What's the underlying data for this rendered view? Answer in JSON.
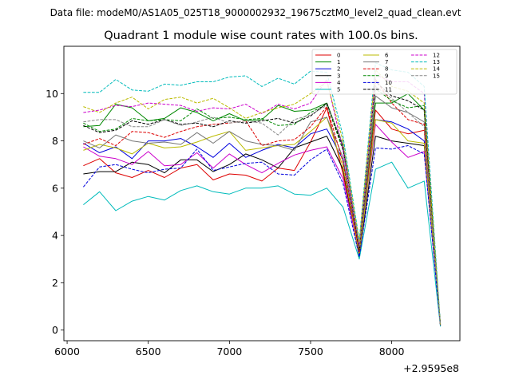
{
  "suptitle": "Data file: modeM0/AS1A05_025T18_9000002932_19675cztM0_level2_quad_clean.evt",
  "chart_data": {
    "type": "line",
    "title": "Quadrant 1 module wise count rates with 100.0s bins.",
    "xlabel": "",
    "ylabel": "",
    "x_offset_label": "+2.9595e8",
    "xlim": [
      5980,
      8420
    ],
    "ylim": [
      -0.45,
      12.0
    ],
    "xticks": [
      6000,
      6500,
      7000,
      7500,
      8000
    ],
    "yticks": [
      0,
      2,
      4,
      6,
      8,
      10
    ],
    "grid": false,
    "legend_placement": "top-right",
    "x": [
      6100,
      6200,
      6300,
      6400,
      6500,
      6600,
      6700,
      6800,
      6900,
      7000,
      7100,
      7200,
      7300,
      7400,
      7500,
      7600,
      7700,
      7800,
      7900,
      8000,
      8100,
      8200,
      8300
    ],
    "series": [
      {
        "name": "0",
        "color": "#dd0000",
        "dash": "solid",
        "values": [
          6.95,
          7.25,
          6.65,
          6.45,
          6.75,
          6.45,
          6.85,
          7.0,
          6.35,
          6.6,
          6.55,
          6.3,
          6.85,
          6.75,
          7.95,
          9.4,
          6.6,
          3.3,
          9.3,
          8.5,
          8.3,
          8.45,
          0.25
        ]
      },
      {
        "name": "1",
        "color": "#008800",
        "dash": "solid",
        "values": [
          8.6,
          8.65,
          9.55,
          9.4,
          8.85,
          8.95,
          9.4,
          9.2,
          8.85,
          9.15,
          8.85,
          8.9,
          9.5,
          9.25,
          9.3,
          9.6,
          7.8,
          3.5,
          9.6,
          9.6,
          10.0,
          9.3,
          0.2
        ]
      },
      {
        "name": "2",
        "color": "#0000dd",
        "dash": "solid",
        "values": [
          7.9,
          7.5,
          7.75,
          7.25,
          8.0,
          8.0,
          8.1,
          7.75,
          7.3,
          7.9,
          7.3,
          7.6,
          7.85,
          7.7,
          8.3,
          8.5,
          7.2,
          3.3,
          8.9,
          8.8,
          8.5,
          8.0,
          0.25
        ]
      },
      {
        "name": "3",
        "color": "#000000",
        "dash": "solid",
        "values": [
          6.6,
          6.7,
          6.7,
          7.1,
          7.0,
          6.65,
          7.2,
          7.2,
          6.7,
          7.0,
          7.45,
          7.2,
          6.85,
          7.7,
          7.95,
          8.2,
          6.8,
          3.1,
          8.2,
          8.0,
          7.9,
          7.8,
          0.2
        ]
      },
      {
        "name": "4",
        "color": "#cc00cc",
        "dash": "solid",
        "values": [
          7.75,
          7.35,
          7.25,
          7.0,
          7.55,
          6.95,
          7.0,
          7.5,
          6.85,
          7.45,
          7.0,
          6.65,
          7.05,
          7.4,
          7.6,
          7.75,
          6.4,
          3.25,
          8.7,
          7.95,
          7.3,
          7.55,
          0.2
        ]
      },
      {
        "name": "5",
        "color": "#00bbbb",
        "dash": "solid",
        "values": [
          5.3,
          5.85,
          5.05,
          5.45,
          5.65,
          5.5,
          5.9,
          6.1,
          5.85,
          5.75,
          6.0,
          6.0,
          6.1,
          5.75,
          5.7,
          6.0,
          5.2,
          3.0,
          6.8,
          7.1,
          6.0,
          6.3,
          0.15
        ]
      },
      {
        "name": "6",
        "color": "#bbbb00",
        "dash": "solid",
        "values": [
          7.6,
          7.85,
          7.7,
          7.45,
          7.9,
          7.7,
          7.75,
          7.95,
          8.2,
          8.4,
          7.6,
          7.7,
          7.8,
          7.85,
          8.4,
          9.0,
          6.9,
          3.2,
          8.9,
          8.75,
          8.0,
          7.9,
          0.25
        ]
      },
      {
        "name": "7",
        "color": "#777777",
        "dash": "solid",
        "values": [
          8.0,
          7.7,
          8.25,
          8.0,
          7.9,
          7.95,
          7.85,
          8.35,
          7.9,
          8.4,
          8.0,
          7.85,
          7.8,
          7.6,
          8.8,
          9.0,
          7.3,
          3.4,
          9.9,
          9.4,
          9.2,
          8.8,
          0.2
        ]
      },
      {
        "name": "8",
        "color": "#dd0000",
        "dash": "dashed",
        "values": [
          7.85,
          8.1,
          7.8,
          8.4,
          8.35,
          8.15,
          8.4,
          8.6,
          8.7,
          8.75,
          8.85,
          7.8,
          8.0,
          8.05,
          8.6,
          9.45,
          7.1,
          3.3,
          10.6,
          9.6,
          8.9,
          8.7,
          0.2
        ]
      },
      {
        "name": "9",
        "color": "#008800",
        "dash": "dashed",
        "values": [
          8.75,
          8.4,
          8.5,
          8.95,
          8.85,
          8.9,
          8.85,
          9.35,
          8.95,
          9.0,
          8.9,
          8.95,
          8.65,
          8.7,
          9.2,
          9.55,
          7.6,
          3.6,
          10.2,
          9.7,
          9.4,
          9.5,
          0.2
        ]
      },
      {
        "name": "10",
        "color": "#0000dd",
        "dash": "dashed",
        "values": [
          6.05,
          6.9,
          7.0,
          6.8,
          6.65,
          6.8,
          6.85,
          7.65,
          6.75,
          6.9,
          7.05,
          7.1,
          6.6,
          6.55,
          7.2,
          7.65,
          6.2,
          3.1,
          7.7,
          7.65,
          7.8,
          7.45,
          0.2
        ]
      },
      {
        "name": "11",
        "color": "#000000",
        "dash": "dashed",
        "values": [
          8.65,
          8.35,
          8.45,
          8.85,
          8.7,
          8.9,
          8.7,
          8.75,
          8.6,
          8.85,
          8.75,
          8.85,
          8.95,
          8.75,
          9.05,
          9.6,
          7.7,
          3.4,
          10.5,
          9.9,
          9.7,
          9.3,
          0.2
        ]
      },
      {
        "name": "12",
        "color": "#cc00cc",
        "dash": "dashed",
        "values": [
          9.2,
          9.3,
          9.5,
          9.45,
          9.6,
          9.55,
          9.5,
          9.25,
          9.4,
          9.35,
          9.55,
          9.15,
          9.55,
          9.35,
          9.6,
          10.6,
          7.6,
          3.6,
          10.8,
          10.5,
          10.5,
          10.0,
          0.2
        ]
      },
      {
        "name": "13",
        "color": "#00bbbb",
        "dash": "dashed",
        "values": [
          10.05,
          10.05,
          10.6,
          10.15,
          10.1,
          10.4,
          10.35,
          10.5,
          10.5,
          10.7,
          10.75,
          10.3,
          10.65,
          10.4,
          10.95,
          10.9,
          8.2,
          3.8,
          11.3,
          11.0,
          10.9,
          10.3,
          0.25
        ]
      },
      {
        "name": "14",
        "color": "#bbbb00",
        "dash": "dashed",
        "values": [
          9.45,
          9.2,
          9.6,
          9.85,
          9.35,
          9.75,
          9.85,
          9.6,
          9.8,
          9.4,
          8.95,
          9.2,
          9.4,
          9.55,
          10.0,
          10.5,
          8.0,
          3.7,
          11.0,
          10.3,
          10.1,
          9.6,
          0.2
        ]
      },
      {
        "name": "15",
        "color": "#888888",
        "dash": "dashed",
        "values": [
          8.8,
          8.9,
          8.9,
          8.6,
          8.6,
          8.9,
          8.65,
          8.8,
          9.0,
          8.75,
          8.85,
          8.75,
          8.25,
          8.9,
          9.1,
          9.5,
          7.9,
          3.5,
          10.3,
          9.8,
          9.2,
          8.6,
          0.2
        ]
      }
    ]
  }
}
